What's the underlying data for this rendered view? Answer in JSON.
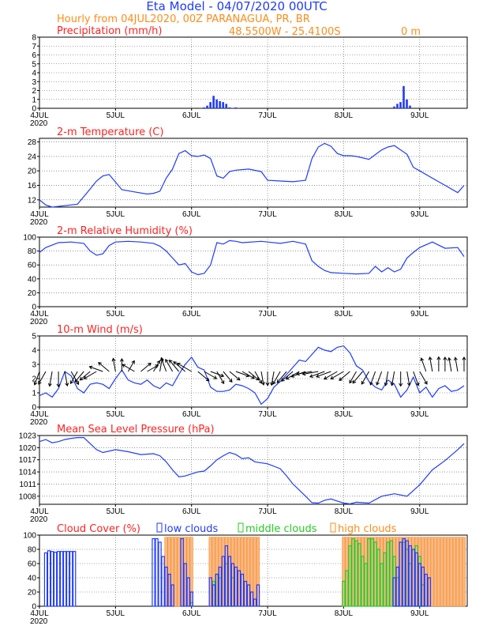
{
  "header": {
    "title": "Eta Model - 04/07/2020 00UTC",
    "subtitle": "Hourly from 04JUL2020, 00Z  PARANAGUA, PR, BR",
    "coords": "48.5500W - 25.4100S",
    "elevation": "0  m"
  },
  "colors": {
    "title": "#1f3bff",
    "subtitle": "#ff8c1a",
    "panel_title": "#ff2222",
    "series": "#1f3bff",
    "low": "#1f3bff",
    "middle": "#22cc22",
    "high": "#ff8c1a",
    "high_fill": "#f7b98a"
  },
  "chart_data": [
    {
      "type": "bar",
      "title": "Precipitation (mm/h)",
      "ylim": [
        0,
        8
      ],
      "yticks": [
        "0",
        "1",
        "2",
        "3",
        "4",
        "5",
        "6",
        "7",
        "8"
      ],
      "xlabels": [
        "4JUL",
        "5JUL",
        "6JUL",
        "7JUL",
        "8JUL",
        "9JUL"
      ],
      "year_label": "2020",
      "x": [
        51,
        52,
        53,
        54,
        55,
        56,
        57,
        58,
        59,
        60,
        61,
        62,
        63,
        112,
        113,
        114,
        115,
        116,
        117
      ],
      "values": [
        0.05,
        0.1,
        0.3,
        0.7,
        1.4,
        1.0,
        0.8,
        0.7,
        0.5,
        0.1,
        0.05,
        0.1,
        0.05,
        0.2,
        0.5,
        0.7,
        2.5,
        1.0,
        0.3
      ]
    },
    {
      "type": "line",
      "title": "2-m Temperature (C)",
      "ylim": [
        10,
        29
      ],
      "yticks": [
        "12",
        "16",
        "20",
        "24",
        "28"
      ],
      "xlabels": [
        "4JUL",
        "5JUL",
        "6JUL",
        "7JUL",
        "8JUL",
        "9JUL"
      ],
      "year_label": "2020",
      "x": [
        0,
        2,
        4,
        8,
        12,
        16,
        18,
        20,
        22,
        26,
        30,
        34,
        36,
        38,
        40,
        42,
        44,
        46,
        48,
        50,
        52,
        54,
        56,
        58,
        60,
        62,
        66,
        70,
        72,
        76,
        80,
        84,
        86,
        88,
        90,
        92,
        94,
        96,
        98,
        100,
        104,
        108,
        110,
        112,
        114,
        116,
        118,
        120,
        124,
        128,
        132,
        134
      ],
      "values": [
        12,
        10.6,
        10,
        10.4,
        10.8,
        15,
        17.2,
        18.6,
        19,
        14.8,
        14.2,
        13.6,
        13.8,
        14.4,
        18,
        20.5,
        24.8,
        25.6,
        24.2,
        24,
        24.4,
        23.4,
        18.6,
        18,
        19.8,
        20.2,
        20.5,
        19.8,
        17.4,
        17.2,
        17,
        17.4,
        23.4,
        26.6,
        27.6,
        26.8,
        24.8,
        24.2,
        24.2,
        24,
        23.2,
        25.8,
        26.6,
        27,
        25.8,
        24.6,
        21,
        20,
        18,
        16,
        14,
        16
      ]
    },
    {
      "type": "line",
      "title": "2-m Relative Humidity (%)",
      "ylim": [
        0,
        100
      ],
      "yticks": [
        "0",
        "20",
        "40",
        "60",
        "80",
        "100"
      ],
      "xlabels": [
        "4JUL",
        "5JUL",
        "6JUL",
        "7JUL",
        "8JUL",
        "9JUL"
      ],
      "year_label": "2020",
      "x": [
        0,
        2,
        6,
        10,
        14,
        16,
        18,
        20,
        22,
        24,
        28,
        32,
        36,
        38,
        40,
        42,
        44,
        46,
        48,
        50,
        52,
        54,
        56,
        58,
        60,
        62,
        64,
        70,
        72,
        76,
        80,
        84,
        86,
        88,
        90,
        92,
        96,
        100,
        104,
        106,
        108,
        110,
        112,
        114,
        116,
        118,
        120,
        124,
        128,
        132,
        134
      ],
      "values": [
        78,
        85,
        92,
        93,
        91,
        80,
        74,
        76,
        88,
        93,
        94,
        93,
        91,
        87,
        80,
        70,
        60,
        62,
        50,
        46,
        48,
        60,
        92,
        90,
        95,
        94,
        92,
        94,
        93,
        91,
        94,
        90,
        66,
        58,
        52,
        49,
        48,
        47,
        48,
        58,
        50,
        56,
        50,
        54,
        70,
        78,
        85,
        93,
        84,
        85,
        72
      ]
    },
    {
      "type": "line",
      "title": "10-m Wind (m/s)",
      "ylim": [
        0,
        5
      ],
      "yticks": [
        "0",
        "1",
        "2",
        "3",
        "4",
        "5"
      ],
      "xlabels": [
        "4JUL",
        "5JUL",
        "6JUL",
        "7JUL",
        "8JUL",
        "9JUL"
      ],
      "year_label": "2020",
      "x": [
        0,
        2,
        4,
        6,
        8,
        10,
        12,
        14,
        16,
        18,
        20,
        22,
        24,
        26,
        28,
        30,
        32,
        34,
        36,
        38,
        40,
        42,
        44,
        46,
        48,
        50,
        52,
        54,
        56,
        58,
        60,
        62,
        64,
        66,
        68,
        70,
        72,
        74,
        76,
        78,
        80,
        82,
        84,
        86,
        88,
        90,
        92,
        94,
        96,
        98,
        100,
        102,
        104,
        106,
        108,
        110,
        112,
        114,
        116,
        118,
        120,
        122,
        124,
        126,
        128,
        130,
        132,
        134
      ],
      "values": [
        0.8,
        1.0,
        0.7,
        1.3,
        2.5,
        2.2,
        1.3,
        1.0,
        1.6,
        1.7,
        1.6,
        1.3,
        2.0,
        2.6,
        1.9,
        1.7,
        1.6,
        1.9,
        1.5,
        1.3,
        1.7,
        1.5,
        2.3,
        3.0,
        3.5,
        2.8,
        2.6,
        1.4,
        1.1,
        1.1,
        1.2,
        1.6,
        1.5,
        1.3,
        1.0,
        0.2,
        0.6,
        1.4,
        1.8,
        2.3,
        2.8,
        3.3,
        3.2,
        3.7,
        4.2,
        4.0,
        3.9,
        4.2,
        4.3,
        3.8,
        2.9,
        2.6,
        1.8,
        1.4,
        1.2,
        1.9,
        1.6,
        0.7,
        1.2,
        2.1,
        1.0,
        1.4,
        0.7,
        1.3,
        1.5,
        1.1,
        1.2,
        1.5
      ],
      "barb_speeds": [
        2.5,
        2.6,
        2.7,
        2.8,
        2.6,
        2.7,
        2.4,
        2.3,
        2.2,
        2.6,
        2.5,
        2.4,
        2.2,
        2.0,
        1.9,
        2.4,
        2.1,
        2.0,
        1.9,
        2.2,
        2.6,
        2.4,
        2.7,
        2.8,
        3.2,
        2.6,
        2.5,
        2.4,
        2.4,
        2.3,
        2.2,
        2.4,
        2.4,
        2.2,
        2.3,
        2.3,
        2.4,
        2.4,
        2.6,
        2.6,
        2.7,
        2.8,
        2.8,
        2.9,
        3.0,
        2.9,
        2.9,
        2.8,
        2.7,
        2.4,
        2.2,
        2.8,
        2.6,
        2.5,
        2.5,
        2.5,
        2.5,
        2.6,
        2.5,
        2.7,
        2.6,
        2.5,
        2.6,
        2.6,
        2.5,
        2.4,
        2.5,
        2.5
      ],
      "barb_dirs": [
        110,
        120,
        100,
        90,
        80,
        60,
        120,
        130,
        140,
        150,
        200,
        220,
        260,
        270,
        300,
        210,
        320,
        330,
        300,
        280,
        250,
        240,
        230,
        220,
        210,
        40,
        30,
        20,
        60,
        50,
        40,
        20,
        30,
        40,
        60,
        80,
        90,
        100,
        120,
        130,
        140,
        150,
        160,
        170,
        170,
        160,
        160,
        150,
        150,
        140,
        120,
        130,
        120,
        110,
        110,
        100,
        100,
        90,
        80,
        70,
        60,
        250,
        260,
        270,
        270,
        260,
        260,
        270
      ]
    },
    {
      "type": "line",
      "title": "Mean Sea Level Pressure (hPa)",
      "ylim": [
        1006,
        1023
      ],
      "yticks": [
        "1008",
        "1011",
        "1014",
        "1017",
        "1020",
        "1023"
      ],
      "xlabels": [
        "4JUL",
        "5JUL",
        "6JUL",
        "7JUL",
        "8JUL",
        "9JUL"
      ],
      "year_label": "2020",
      "x": [
        0,
        2,
        4,
        6,
        8,
        10,
        12,
        14,
        16,
        18,
        20,
        24,
        28,
        32,
        36,
        38,
        40,
        42,
        44,
        46,
        48,
        50,
        52,
        54,
        56,
        58,
        60,
        62,
        64,
        66,
        68,
        72,
        76,
        78,
        80,
        82,
        84,
        86,
        88,
        90,
        92,
        94,
        96,
        98,
        100,
        104,
        108,
        112,
        116,
        120,
        124,
        128,
        132,
        134
      ],
      "values": [
        1021.5,
        1022,
        1021.2,
        1021.5,
        1022,
        1022.3,
        1022.5,
        1022.5,
        1021,
        1019.5,
        1018.8,
        1019.5,
        1019.0,
        1018.3,
        1018.5,
        1018.0,
        1016.5,
        1014.5,
        1012.8,
        1013.0,
        1013.5,
        1014.0,
        1014.2,
        1015.5,
        1017.0,
        1018.0,
        1018.8,
        1018.3,
        1017.3,
        1017.5,
        1016.5,
        1016.0,
        1014.8,
        1013.0,
        1011.0,
        1009.5,
        1008.0,
        1006.4,
        1006.3,
        1007.0,
        1007.3,
        1006.8,
        1006.3,
        1006.1,
        1006.5,
        1006.3,
        1008.0,
        1008.6,
        1008.0,
        1010.8,
        1014.5,
        1016.8,
        1019.5,
        1021.0
      ]
    },
    {
      "type": "bar",
      "title": "Cloud Cover (%)",
      "legend": [
        "low clouds",
        "middle clouds",
        "high clouds"
      ],
      "ylim": [
        0,
        100
      ],
      "yticks": [
        "0",
        "20",
        "40",
        "60",
        "80",
        "100"
      ],
      "xlabels": [
        "4JUL",
        "5JUL",
        "6JUL",
        "7JUL",
        "8JUL",
        "9JUL"
      ],
      "year_label": "2020",
      "series": [
        {
          "name": "low clouds",
          "x": [
            2,
            3,
            4,
            5,
            6,
            7,
            8,
            9,
            10,
            11,
            36,
            37,
            38,
            39,
            40,
            41,
            42,
            45,
            46,
            47,
            48,
            54,
            55,
            56,
            57,
            58,
            59,
            60,
            61,
            62,
            63,
            64,
            65,
            66,
            67,
            68,
            69,
            112,
            113,
            114,
            115,
            116,
            117,
            118,
            119,
            120,
            121,
            122,
            123
          ],
          "values": [
            75,
            78,
            77,
            76,
            77,
            77,
            77,
            77,
            77,
            77,
            95,
            95,
            90,
            70,
            55,
            45,
            30,
            95,
            60,
            40,
            20,
            40,
            30,
            45,
            55,
            70,
            85,
            70,
            60,
            55,
            50,
            45,
            35,
            30,
            20,
            10,
            30,
            40,
            55,
            90,
            95,
            92,
            85,
            80,
            75,
            60,
            55,
            45,
            40
          ]
        },
        {
          "name": "middle clouds",
          "x": [
            48,
            55,
            56,
            57,
            59,
            61,
            96,
            97,
            98,
            99,
            100,
            101,
            102,
            103,
            104,
            105,
            106,
            107,
            108,
            109,
            110,
            111,
            112,
            113,
            115,
            116,
            117,
            119,
            120,
            121
          ],
          "values": [
            5,
            35,
            45,
            40,
            60,
            40,
            35,
            50,
            85,
            95,
            92,
            88,
            70,
            60,
            95,
            95,
            90,
            80,
            60,
            75,
            90,
            92,
            70,
            40,
            90,
            80,
            60,
            85,
            70,
            30
          ]
        },
        {
          "name": "high clouds",
          "x": [
            40,
            41,
            42,
            43,
            44,
            45,
            46,
            47,
            48,
            54,
            55,
            56,
            57,
            58,
            59,
            60,
            61,
            62,
            63,
            64,
            65,
            66,
            67,
            68,
            69,
            96,
            97,
            98,
            99,
            100,
            101,
            102,
            103,
            104,
            105,
            106,
            107,
            108,
            109,
            110,
            111,
            112,
            113,
            114,
            115,
            116,
            117,
            118,
            119,
            120,
            121,
            122,
            123,
            124,
            125,
            126,
            127,
            128,
            129,
            130,
            131,
            132,
            133,
            134
          ],
          "values": [
            97,
            97,
            97,
            97,
            97,
            97,
            97,
            97,
            97,
            97,
            97,
            97,
            97,
            97,
            97,
            97,
            97,
            97,
            97,
            97,
            97,
            97,
            97,
            97,
            97,
            97,
            97,
            97,
            97,
            97,
            97,
            97,
            97,
            97,
            97,
            97,
            97,
            97,
            97,
            97,
            97,
            97,
            97,
            97,
            97,
            97,
            97,
            97,
            97,
            97,
            97,
            97,
            97,
            97,
            97,
            97,
            97,
            97,
            97,
            97,
            97,
            97,
            97,
            97
          ]
        }
      ]
    }
  ]
}
